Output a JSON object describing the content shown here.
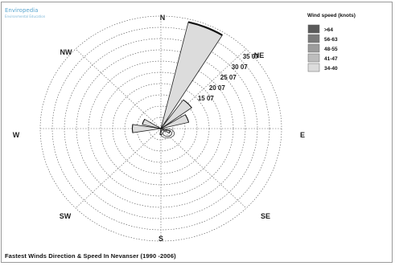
{
  "logo": {
    "name": "Enviropedia",
    "tagline": "Environmental Education"
  },
  "caption": "Fastest Winds Direction & Speed In Nevanser (1990 -2006)",
  "chart_data": {
    "type": "windrose",
    "title": "Fastest Winds Direction & Speed In Nevanser (1990 -2006)",
    "directions": [
      "N",
      "NE",
      "E",
      "SE",
      "S",
      "SW",
      "W",
      "NW"
    ],
    "ring_labels": [
      "15 07",
      "20 07",
      "25 07",
      "30 07",
      "35 07"
    ],
    "ring_label_values": [
      15,
      20,
      25,
      30,
      35
    ],
    "r_max": 38,
    "legend": {
      "title": "Wind speed (knots)",
      "bins": [
        {
          "label": ">64",
          "color": "#5a5a5a"
        },
        {
          "label": "56-63",
          "color": "#7a7a7a"
        },
        {
          "label": "48-55",
          "color": "#9c9c9c"
        },
        {
          "label": "41-47",
          "color": "#bdbdbd"
        },
        {
          "label": "34-40",
          "color": "#dcdcdc"
        }
      ]
    },
    "petals": [
      {
        "bearing": 22.5,
        "value": 37,
        "color": "#dcdcdc"
      },
      {
        "bearing": 45,
        "value": 12,
        "color": "#dcdcdc"
      },
      {
        "bearing": 67.5,
        "value": 9,
        "color": "#dcdcdc"
      },
      {
        "bearing": 112.5,
        "value": 3,
        "color": "#e6e6e6"
      },
      {
        "bearing": 180,
        "value": 2,
        "color": "#e6e6e6"
      },
      {
        "bearing": 270,
        "value": 9,
        "color": "#dcdcdc"
      },
      {
        "bearing": 292.5,
        "value": 6,
        "color": "#dcdcdc"
      }
    ]
  }
}
